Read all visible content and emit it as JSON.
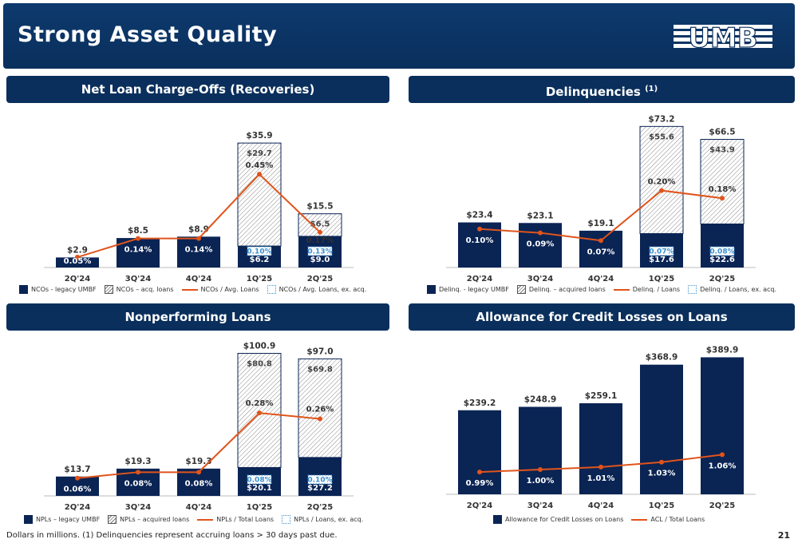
{
  "header": {
    "title": "Strong Asset Quality",
    "logo_text": "UMB"
  },
  "footer": {
    "note": "Dollars in millions. (1) Delinquencies represent accruing loans > 30 days past due.",
    "page_number": "21"
  },
  "colors": {
    "navy": "#0a2454",
    "orange": "#e0541b",
    "blue_dash": "#3a8fd0",
    "banner": "#0a2f5c"
  },
  "chart_data": [
    {
      "id": "nco",
      "type": "bar",
      "title": "Net Loan Charge-Offs (Recoveries)",
      "title_sup": "",
      "categories": [
        "2Q'24",
        "3Q'24",
        "4Q'24",
        "1Q'25",
        "2Q'25"
      ],
      "legend": [
        "NCOs - legacy UMBF",
        "NCOs – acq. loans",
        "NCOs / Avg. Loans",
        "NCOs / Avg. Loans, ex. acq."
      ],
      "series": [
        {
          "name": "NCOs - legacy UMBF",
          "values": [
            2.9,
            8.5,
            8.9,
            6.2,
            9.0
          ],
          "labels": [
            "",
            "",
            "",
            "$6.2",
            "$9.0"
          ]
        },
        {
          "name": "NCOs – acq. loans",
          "values": [
            0,
            0,
            0,
            29.7,
            6.5
          ],
          "labels": [
            "",
            "",
            "",
            "$29.7",
            "$6.5"
          ]
        }
      ],
      "totals": [
        "$2.9",
        "$8.5",
        "$8.9",
        "$35.9",
        "$15.5"
      ],
      "ymax": 38,
      "line": {
        "name": "NCOs / Avg. Loans",
        "values": [
          0.05,
          0.14,
          0.14,
          0.45,
          0.17
        ],
        "labels": [
          "0.05%",
          "0.14%",
          "0.14%",
          "0.45%",
          "0.17%"
        ],
        "ymax": 0.52
      },
      "ex_acq": {
        "name": "NCOs / Avg. Loans, ex. acq.",
        "labels": [
          "",
          "",
          "",
          "0.10%",
          "0.13%"
        ]
      }
    },
    {
      "id": "delinq",
      "type": "bar",
      "title": "Delinquencies",
      "title_sup": "(1)",
      "categories": [
        "2Q'24",
        "3Q'24",
        "4Q'24",
        "1Q'25",
        "2Q'25"
      ],
      "legend": [
        "Delinq. - legacy UMBF",
        "Delinq. – acquired loans",
        "Delinq. / Loans",
        "Delinq. / Loans, ex. acq."
      ],
      "series": [
        {
          "name": "Delinq. - legacy UMBF",
          "values": [
            23.4,
            23.1,
            19.1,
            17.6,
            22.6
          ],
          "labels": [
            "",
            "",
            "",
            "$17.6",
            "$22.6"
          ]
        },
        {
          "name": "Delinq. – acquired loans",
          "values": [
            0,
            0,
            0,
            55.6,
            43.9
          ],
          "labels": [
            "",
            "",
            "",
            "$55.6",
            "$43.9"
          ]
        }
      ],
      "totals": [
        "$23.4",
        "$23.1",
        "$19.1",
        "$73.2",
        "$66.5"
      ],
      "ymax": 75,
      "line": {
        "name": "Delinq. / Loans",
        "values": [
          0.1,
          0.09,
          0.07,
          0.2,
          0.18
        ],
        "labels": [
          "0.10%",
          "0.09%",
          "0.07%",
          "0.20%",
          "0.18%"
        ],
        "ymax": 0.28
      },
      "ex_acq": {
        "name": "Delinq. / Loans, ex. acq.",
        "labels": [
          "",
          "",
          "",
          "0.07%",
          "0.08%"
        ]
      }
    },
    {
      "id": "npl",
      "type": "bar",
      "title": "Nonperforming Loans",
      "title_sup": "",
      "categories": [
        "2Q'24",
        "3Q'24",
        "4Q'24",
        "1Q'25",
        "2Q'25"
      ],
      "legend": [
        "NPLs – legacy UMBF",
        "NPLs – acquired loans",
        "NPLs / Total Loans",
        "NPLs / Loans, ex. acq."
      ],
      "series": [
        {
          "name": "NPLs – legacy UMBF",
          "values": [
            13.7,
            19.3,
            19.3,
            20.1,
            27.2
          ],
          "labels": [
            "",
            "",
            "",
            "$20.1",
            "$27.2"
          ]
        },
        {
          "name": "NPLs – acquired loans",
          "values": [
            0,
            0,
            0,
            80.8,
            69.8
          ],
          "labels": [
            "",
            "",
            "",
            "$80.8",
            "$69.8"
          ]
        }
      ],
      "totals": [
        "$13.7",
        "$19.3",
        "$19.3",
        "$100.9",
        "$97.0"
      ],
      "ymax": 104,
      "line": {
        "name": "NPLs / Total Loans",
        "values": [
          0.06,
          0.08,
          0.08,
          0.28,
          0.26
        ],
        "labels": [
          "0.06%",
          "0.08%",
          "0.08%",
          "0.28%",
          "0.26%"
        ],
        "ymax": 0.38
      },
      "ex_acq": {
        "name": "NPLs / Loans, ex. acq.",
        "labels": [
          "",
          "",
          "",
          "0.08%",
          "0.10%"
        ]
      }
    },
    {
      "id": "acl",
      "type": "bar",
      "title": "Allowance for Credit Losses on Loans",
      "title_sup": "",
      "categories": [
        "2Q'24",
        "3Q'24",
        "4Q'24",
        "1Q'25",
        "2Q'25"
      ],
      "legend": [
        "Allowance for Credit Losses on Loans",
        "ACL / Total Loans"
      ],
      "series": [
        {
          "name": "Allowance for Credit Losses on Loans",
          "values": [
            239.2,
            248.9,
            259.1,
            368.9,
            389.9
          ],
          "labels": [
            "",
            "",
            "",
            "",
            ""
          ]
        }
      ],
      "totals": [
        "$239.2",
        "$248.9",
        "$259.1",
        "$368.9",
        "$389.9"
      ],
      "ymax": 400,
      "line": {
        "name": "ACL / Total Loans",
        "values": [
          0.99,
          1.0,
          1.01,
          1.03,
          1.06
        ],
        "labels": [
          "0.99%",
          "1.00%",
          "1.01%",
          "1.03%",
          "1.06%"
        ],
        "ymin": 0.9,
        "ymax": 1.3
      }
    }
  ]
}
